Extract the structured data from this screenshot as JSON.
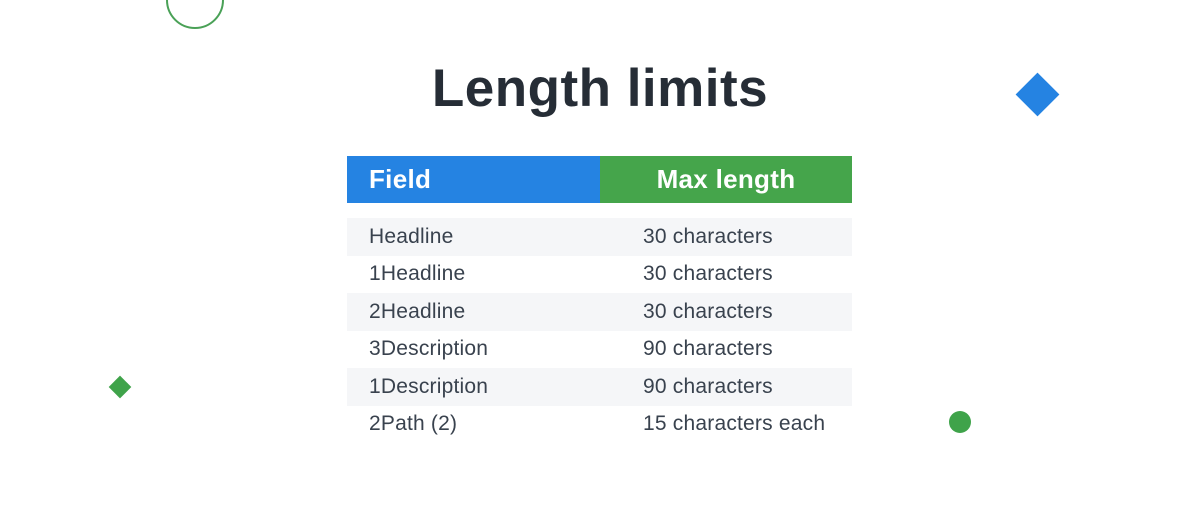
{
  "title": "Length limits",
  "table": {
    "headers": [
      {
        "label": "Field"
      },
      {
        "label": "Max length"
      }
    ],
    "rows": [
      {
        "field": "Headline",
        "max_length": "30 characters"
      },
      {
        "field": "1Headline",
        "max_length": "30 characters"
      },
      {
        "field": "2Headline",
        "max_length": "30 characters"
      },
      {
        "field": "3Description",
        "max_length": "90 characters"
      },
      {
        "field": "1Description",
        "max_length": "90 characters"
      },
      {
        "field": "2Path (2)",
        "max_length": "15 characters each"
      }
    ]
  },
  "chart_data": {
    "type": "table",
    "title": "Length limits",
    "columns": [
      "Field",
      "Max length"
    ],
    "rows": [
      [
        "Headline",
        "30 characters"
      ],
      [
        "1Headline",
        "30 characters"
      ],
      [
        "2Headline",
        "30 characters"
      ],
      [
        "3Description",
        "90 characters"
      ],
      [
        "1Description",
        "90 characters"
      ],
      [
        "2Path (2)",
        "15 characters each"
      ]
    ]
  },
  "decorations": {
    "circle_outline": "green-outline-circle-top-left",
    "blue_diamond": "blue-diamond-right",
    "green_diamond": "green-diamond-left",
    "green_dot": "green-dot-right"
  },
  "colors": {
    "background": "#ffffff",
    "title": "#262d36",
    "header_blue": "#2583e2",
    "header_green": "#45a54b",
    "row_stripe": "#f5f6f8",
    "row_text": "#39424e",
    "green_shape": "#3fa34a",
    "green_stroke": "#4aa157"
  }
}
